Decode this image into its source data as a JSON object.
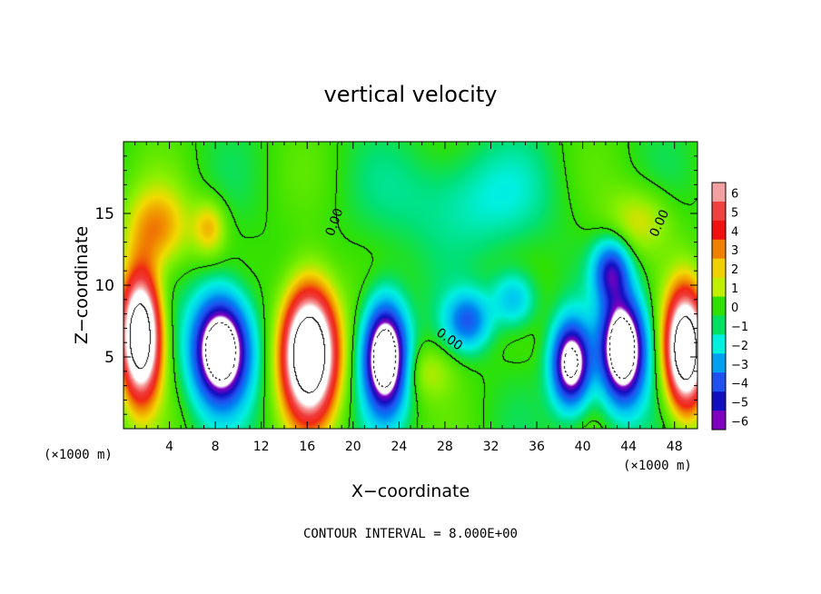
{
  "chart_data": {
    "type": "heatmap",
    "title": "vertical velocity",
    "xlabel": "X−coordinate",
    "ylabel": "Z−coordinate",
    "x_unit": "(×1000 m)",
    "y_unit": "(×1000 m)",
    "xlim": [
      0,
      50
    ],
    "ylim": [
      0,
      20
    ],
    "x_ticks": [
      4,
      8,
      12,
      16,
      20,
      24,
      28,
      32,
      36,
      40,
      44,
      48
    ],
    "y_ticks": [
      5,
      10,
      15
    ],
    "colorbar": {
      "ticks": [
        6,
        5,
        4,
        3,
        2,
        1,
        0,
        -1,
        -2,
        -3,
        -4,
        -5,
        -6
      ],
      "tick_labels": [
        "6",
        "5",
        "4",
        "3",
        "2",
        "1",
        "0",
        "−1",
        "−2",
        "−3",
        "−4",
        "−5",
        "−6"
      ],
      "colors": [
        "#f5a0a0",
        "#f04040",
        "#f01010",
        "#f08000",
        "#f0d000",
        "#c0f000",
        "#30e000",
        "#00e060",
        "#00f0e0",
        "#00a0f0",
        "#2050f0",
        "#1010c0",
        "#8000c0"
      ]
    },
    "contour_label": "0.00",
    "footer": "CONTOUR INTERVAL = 8.000E+00",
    "features": [
      {
        "kind": "updraft",
        "x": 1.5,
        "z": 6.5,
        "rx": 1.8,
        "rz": 4.5,
        "amp": 12
      },
      {
        "kind": "downdraft",
        "x": 8.5,
        "z": 5.5,
        "rx": 2.5,
        "rz": 3.8,
        "amp": -11
      },
      {
        "kind": "updraft",
        "x": 16.2,
        "z": 5.3,
        "rx": 2.4,
        "rz": 4.6,
        "amp": 13
      },
      {
        "kind": "downdraft",
        "x": 22.8,
        "z": 5.0,
        "rx": 1.9,
        "rz": 3.8,
        "amp": -11
      },
      {
        "kind": "downdraft",
        "x": 39.0,
        "z": 4.5,
        "rx": 1.7,
        "rz": 3.0,
        "amp": -9
      },
      {
        "kind": "downdraft",
        "x": 43.5,
        "z": 5.5,
        "rx": 2.0,
        "rz": 3.8,
        "amp": -11
      },
      {
        "kind": "updraft",
        "x": 49.0,
        "z": 5.5,
        "rx": 1.8,
        "rz": 4.2,
        "amp": 12
      },
      {
        "kind": "downdraft",
        "x": 42.5,
        "z": 11.0,
        "rx": 1.6,
        "rz": 2.2,
        "amp": -5
      },
      {
        "kind": "downdraft",
        "x": 30.0,
        "z": 7.5,
        "rx": 2.0,
        "rz": 2.0,
        "amp": -4
      },
      {
        "kind": "downdraft",
        "x": 34.0,
        "z": 9.0,
        "rx": 2.0,
        "rz": 2.0,
        "amp": -3
      },
      {
        "kind": "updraft",
        "x": 3.0,
        "z": 14.0,
        "rx": 3.0,
        "rz": 3.0,
        "amp": 3
      },
      {
        "kind": "updraft",
        "x": 7.5,
        "z": 14.0,
        "rx": 1.5,
        "rz": 2.0,
        "amp": 2.5
      },
      {
        "kind": "updraft",
        "x": 45.0,
        "z": 14.5,
        "rx": 3.0,
        "rz": 2.5,
        "amp": 2
      },
      {
        "kind": "updraft",
        "x": 26.5,
        "z": 4.0,
        "rx": 2.5,
        "rz": 2.0,
        "amp": 1.5
      },
      {
        "kind": "downdraft",
        "x": 30.0,
        "z": 16.0,
        "rx": 7.0,
        "rz": 4.0,
        "amp": -1.6
      }
    ]
  }
}
